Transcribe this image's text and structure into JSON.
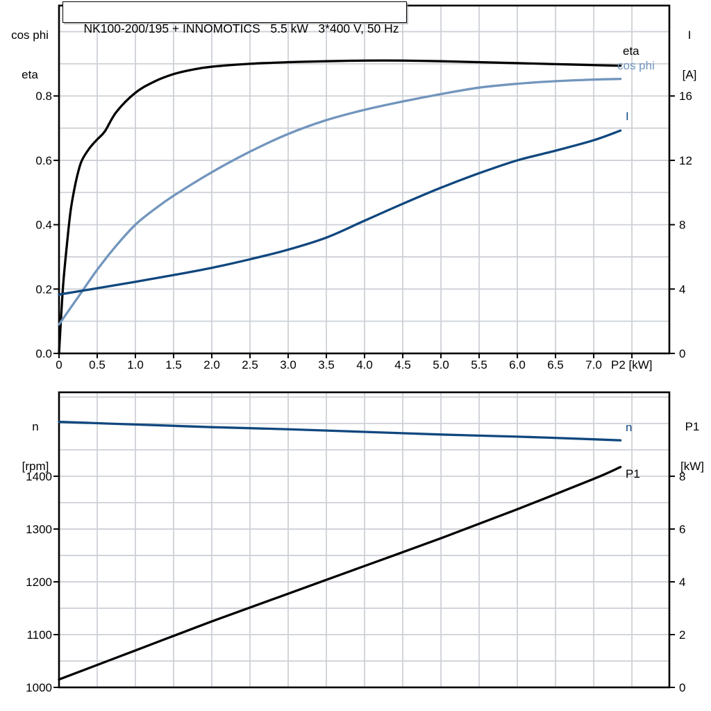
{
  "title": "NK100-200/195 + INNOMOTICS   5.5 kW   3*400 V, 50 Hz",
  "colors": {
    "eta": "#000000",
    "cos_phi": "#7295bd",
    "current": "#10477e",
    "speed": "#10477e",
    "p1": "#000000",
    "grid": "#cdd1d7",
    "axis": "#000000",
    "background": "#ffffff"
  },
  "chart_data": [
    {
      "id": "top",
      "type": "line",
      "title": "NK100-200/195 + INNOMOTICS   5.5 kW   3*400 V, 50 Hz",
      "x_axis": {
        "unit_label": "P2 [kW]",
        "min": 0,
        "max": 7.99,
        "tick_step": 0.5,
        "tick_values": [
          0,
          0.5,
          1.0,
          1.5,
          2.0,
          2.5,
          3.0,
          3.5,
          4.0,
          4.5,
          5.0,
          5.5,
          6.0,
          6.5,
          7.0
        ],
        "tick_labels": [
          "0",
          "0.5",
          "1.0",
          "1.5",
          "2.0",
          "2.5",
          "3.0",
          "3.5",
          "4.0",
          "4.5",
          "5.0",
          "5.5",
          "6.0",
          "6.5",
          "7.0"
        ]
      },
      "left_axis": {
        "label_lines": [
          "cos phi",
          "eta"
        ],
        "min": 0,
        "max": 1.081,
        "grid_step": 0.1,
        "tick_values": [
          0.0,
          0.2,
          0.4,
          0.6,
          0.8
        ],
        "tick_labels": [
          "0.0",
          "0.2",
          "0.4",
          "0.6",
          "0.8"
        ]
      },
      "right_axis": {
        "label_lines": [
          "I",
          "[A]"
        ],
        "min": 0,
        "max": 21.62,
        "tick_values": [
          0,
          4,
          8,
          12,
          16
        ],
        "tick_labels": [
          "0",
          "4",
          "8",
          "12",
          "16"
        ]
      },
      "series": [
        {
          "name": "eta",
          "label": "eta",
          "color": "#000000",
          "axis": "left",
          "x": [
            0,
            0.05,
            0.1,
            0.15,
            0.2,
            0.25,
            0.3,
            0.4,
            0.5,
            0.6,
            0.75,
            1.0,
            1.25,
            1.5,
            1.75,
            2.0,
            2.5,
            3.0,
            3.5,
            4.0,
            4.5,
            5.0,
            5.5,
            6.0,
            6.5,
            7.0,
            7.35
          ],
          "y": [
            0,
            0.2,
            0.33,
            0.44,
            0.51,
            0.563,
            0.6,
            0.638,
            0.665,
            0.69,
            0.75,
            0.81,
            0.845,
            0.868,
            0.882,
            0.891,
            0.9,
            0.905,
            0.908,
            0.91,
            0.91,
            0.908,
            0.905,
            0.902,
            0.899,
            0.896,
            0.894
          ]
        },
        {
          "name": "cos phi",
          "label": "cos phi",
          "color": "#7295bd",
          "axis": "left",
          "x": [
            0,
            0.25,
            0.5,
            0.75,
            1.0,
            1.25,
            1.5,
            2.0,
            2.5,
            3.0,
            3.5,
            4.0,
            4.5,
            5.0,
            5.5,
            6.0,
            6.5,
            7.0,
            7.35
          ],
          "y": [
            0.09,
            0.175,
            0.26,
            0.335,
            0.4,
            0.448,
            0.49,
            0.563,
            0.627,
            0.682,
            0.725,
            0.757,
            0.783,
            0.806,
            0.826,
            0.838,
            0.846,
            0.851,
            0.853
          ]
        },
        {
          "name": "I",
          "label": "I",
          "color": "#10477e",
          "axis": "right",
          "x": [
            0,
            0.5,
            1.0,
            1.5,
            2.0,
            2.5,
            3.0,
            3.5,
            4.0,
            4.5,
            5.0,
            5.5,
            6.0,
            6.5,
            7.0,
            7.35
          ],
          "y": [
            3.66,
            4.05,
            4.45,
            4.87,
            5.32,
            5.85,
            6.45,
            7.2,
            8.25,
            9.3,
            10.3,
            11.2,
            12.0,
            12.6,
            13.25,
            13.85
          ]
        }
      ]
    },
    {
      "id": "bottom",
      "type": "line",
      "x_axis": {
        "unit_label": "",
        "min": 0,
        "max": 7.99,
        "tick_step": 0.5,
        "tick_values": [],
        "tick_labels": []
      },
      "left_axis": {
        "label_lines": [
          "n",
          "[rpm]"
        ],
        "min": 1000,
        "max": 1559,
        "grid_step": 50,
        "tick_values": [
          1000,
          1100,
          1200,
          1300,
          1400
        ],
        "tick_labels": [
          "1000",
          "1100",
          "1200",
          "1300",
          "1400"
        ]
      },
      "right_axis": {
        "label_lines": [
          "P1",
          "[kW]"
        ],
        "min": 0,
        "max": 11.18,
        "tick_values": [
          0,
          2,
          4,
          6,
          8
        ],
        "tick_labels": [
          "0",
          "2",
          "4",
          "6",
          "8"
        ]
      },
      "series": [
        {
          "name": "n",
          "label": "n",
          "color": "#10477e",
          "axis": "left",
          "x": [
            0,
            1,
            2,
            3,
            4,
            5,
            6,
            7,
            7.35
          ],
          "y": [
            1503,
            1498,
            1493,
            1489,
            1484,
            1479,
            1475,
            1470,
            1468
          ]
        },
        {
          "name": "P1",
          "label": "P1",
          "color": "#000000",
          "axis": "right",
          "x": [
            0,
            1,
            2,
            3,
            4,
            5,
            6,
            7,
            7.35
          ],
          "y": [
            0.3,
            1.4,
            2.5,
            3.55,
            4.6,
            5.65,
            6.75,
            7.9,
            8.35
          ]
        }
      ]
    }
  ]
}
